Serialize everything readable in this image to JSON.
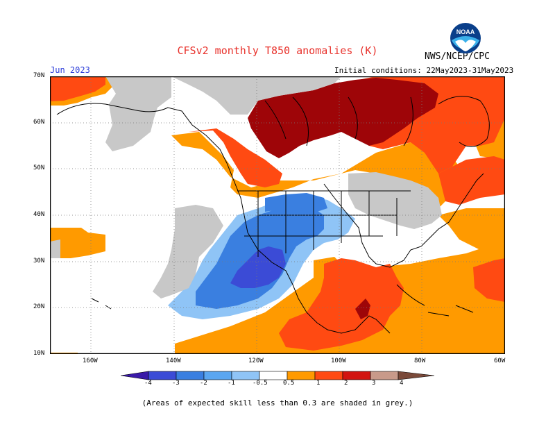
{
  "header": {
    "title": "CFSv2 monthly T850 anomalies (K)",
    "month": "Jun 2023",
    "agency": "NWS/NCEP/CPC",
    "initial_conditions": "Initial conditions: 22May2023-31May2023",
    "logo_text": "NOAA"
  },
  "map": {
    "lat_labels": [
      "70N",
      "60N",
      "50N",
      "40N",
      "30N",
      "20N",
      "10N"
    ],
    "lon_labels": [
      "160W",
      "140W",
      "120W",
      "100W",
      "80W",
      "60W"
    ],
    "zones": [
      {
        "name": "strong-warm-canada",
        "category": "2 to 3"
      },
      {
        "name": "warm-eastern-canada",
        "category": "1 to 2"
      },
      {
        "name": "warm-mexico",
        "category": "1 to 2"
      },
      {
        "name": "mild-warm-atlantic",
        "category": "0.5 to 1"
      },
      {
        "name": "mild-warm-pacific",
        "category": "0.5 to 1"
      },
      {
        "name": "cool-southwest",
        "category": "-1 to -0.5"
      },
      {
        "name": "cool-eastern-pacific",
        "category": "-2 to -1"
      },
      {
        "name": "grey-low-skill",
        "category": "skill < 0.3"
      }
    ]
  },
  "colorbar": {
    "labels": [
      "-4",
      "-3",
      "-2",
      "-1",
      "-0.5",
      "0.5",
      "1",
      "2",
      "3",
      "4"
    ],
    "colors": [
      "#3a1aa8",
      "#3b4bd6",
      "#3a7fe0",
      "#5aa6f0",
      "#8fc4f6",
      "#ffffff",
      "#ff9a00",
      "#ff4a12",
      "#d21410",
      "#9e0508",
      "#c89a8a",
      "#7a4a3a"
    ]
  },
  "footer": {
    "note": "(Areas of expected skill less than 0.3 are shaded in grey.)"
  }
}
